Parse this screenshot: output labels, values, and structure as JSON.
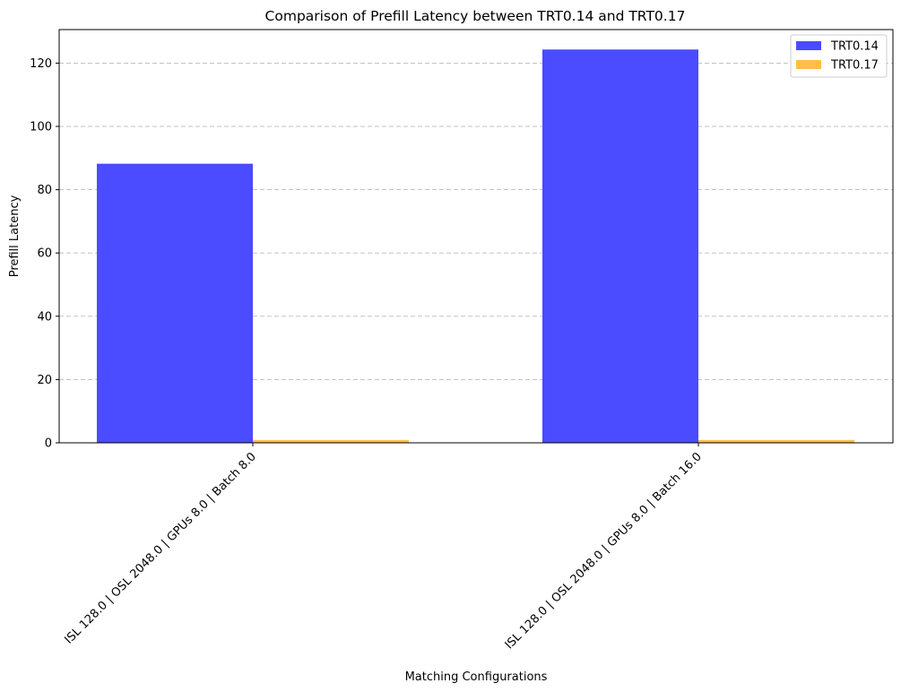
{
  "chart_data": {
    "type": "bar",
    "title": "Comparison of Prefill Latency between TRT0.14 and TRT0.17",
    "xlabel": "Matching Configurations",
    "ylabel": "Prefill Latency",
    "categories": [
      "ISL 128.0 | OSL 2048.0 | GPUs 8.0 | Batch 8.0",
      "ISL 128.0 | OSL 2048.0 | GPUs 8.0 | Batch 16.0"
    ],
    "series": [
      {
        "name": "TRT0.14",
        "color": "#4b4bff",
        "values": [
          88.2,
          124.3
        ]
      },
      {
        "name": "TRT0.17",
        "color": "#ffbe4b",
        "values": [
          0.9,
          0.9
        ]
      }
    ],
    "ylim": [
      0,
      130.6
    ],
    "yticks": [
      0,
      20,
      40,
      60,
      80,
      100,
      120
    ],
    "grid": "y-dashed",
    "legend_position": "top-right"
  }
}
